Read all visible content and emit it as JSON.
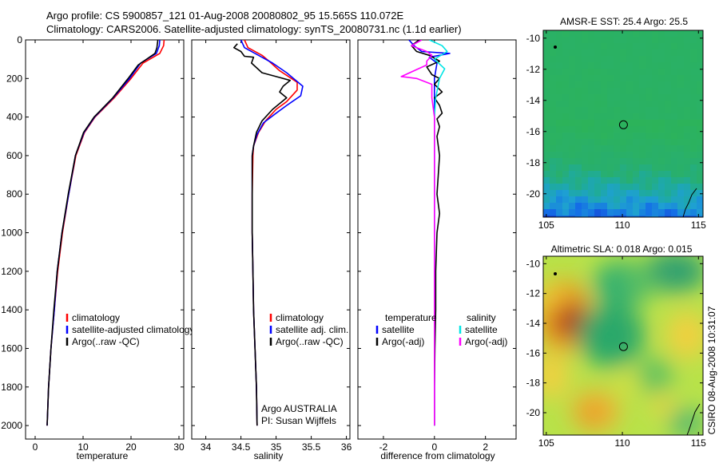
{
  "header": {
    "line1": "Argo profile: CS 5900857_121 01-Aug-2008 20080802_95 15.565S 110.072E",
    "line2": "Climatology: CARS2006. Satellite-adjusted climatology: synTS_20080731.nc (1.1d earlier)"
  },
  "side_stamp": "CSIRO 08-Aug-2008 10:31:07",
  "colors": {
    "climatology": "#ff0000",
    "satellite": "#0000ff",
    "argo": "#000000",
    "salinity_satellite": "#00e5e5",
    "salinity_argo": "#ff00ff"
  },
  "chart_data": [
    {
      "type": "line",
      "panel": "temperature",
      "xlabel": "temperature",
      "ylabel": "",
      "xlim": [
        -2,
        31
      ],
      "ylim": [
        2070,
        0
      ],
      "y_inverted": true,
      "xticks": [
        0,
        10,
        20,
        30
      ],
      "yticks": [
        0,
        200,
        400,
        600,
        800,
        1000,
        1200,
        1400,
        1600,
        1800,
        2000
      ],
      "legend": [
        "climatology",
        "satellite-adjusted climatology",
        "Argo(..raw -QC)"
      ],
      "series": [
        {
          "name": "climatology",
          "color": "#ff0000",
          "points": [
            [
              26.9,
              0
            ],
            [
              26.8,
              30
            ],
            [
              26.0,
              70
            ],
            [
              22.5,
              120
            ],
            [
              20.0,
              200
            ],
            [
              16.5,
              300
            ],
            [
              12.5,
              400
            ],
            [
              10.3,
              480
            ],
            [
              8.5,
              600
            ],
            [
              7.0,
              800
            ],
            [
              5.7,
              1000
            ],
            [
              4.7,
              1200
            ],
            [
              4.0,
              1400
            ],
            [
              3.3,
              1600
            ],
            [
              2.8,
              1800
            ],
            [
              2.5,
              2000
            ]
          ]
        },
        {
          "name": "satellite-adjusted climatology",
          "color": "#0000ff",
          "points": [
            [
              26.0,
              0
            ],
            [
              25.9,
              30
            ],
            [
              25.3,
              70
            ],
            [
              22.0,
              120
            ],
            [
              19.7,
              200
            ],
            [
              16.3,
              300
            ],
            [
              12.4,
              400
            ],
            [
              10.2,
              480
            ],
            [
              8.4,
              600
            ],
            [
              7.0,
              800
            ],
            [
              5.6,
              1000
            ],
            [
              4.6,
              1200
            ],
            [
              4.0,
              1400
            ],
            [
              3.3,
              1600
            ],
            [
              2.8,
              1800
            ],
            [
              2.5,
              2000
            ]
          ]
        },
        {
          "name": "Argo(..raw -QC)",
          "color": "#000000",
          "points": [
            [
              25.6,
              0
            ],
            [
              25.4,
              40
            ],
            [
              25.0,
              70
            ],
            [
              21.5,
              130
            ],
            [
              19.4,
              200
            ],
            [
              16.2,
              300
            ],
            [
              12.3,
              400
            ],
            [
              10.1,
              480
            ],
            [
              8.4,
              600
            ],
            [
              6.9,
              800
            ],
            [
              5.6,
              1000
            ],
            [
              4.6,
              1200
            ],
            [
              3.9,
              1400
            ],
            [
              3.3,
              1600
            ],
            [
              2.8,
              1800
            ],
            [
              2.5,
              2000
            ]
          ]
        }
      ]
    },
    {
      "type": "line",
      "panel": "salinity",
      "xlabel": "salinity",
      "ylabel": "",
      "xlim": [
        33.8,
        36.05
      ],
      "ylim": [
        2070,
        0
      ],
      "y_inverted": true,
      "xticks": [
        34,
        34.5,
        35,
        35.5,
        36
      ],
      "legend": [
        "climatology",
        "satellite adj. clim.",
        "Argo(..raw -QC)"
      ],
      "annotations": [
        "Argo AUSTRALIA",
        "PI: Susan Wijffels"
      ],
      "series": [
        {
          "name": "climatology",
          "color": "#ff0000",
          "points": [
            [
              34.55,
              0
            ],
            [
              34.6,
              40
            ],
            [
              34.8,
              80
            ],
            [
              34.9,
              110
            ],
            [
              35.05,
              160
            ],
            [
              35.3,
              220
            ],
            [
              35.3,
              260
            ],
            [
              35.15,
              320
            ],
            [
              35.0,
              360
            ],
            [
              34.85,
              420
            ],
            [
              34.75,
              480
            ],
            [
              34.68,
              550
            ],
            [
              34.67,
              600
            ],
            [
              34.66,
              800
            ],
            [
              34.66,
              1000
            ],
            [
              34.67,
              1200
            ],
            [
              34.68,
              1400
            ],
            [
              34.7,
              1600
            ],
            [
              34.72,
              1800
            ],
            [
              34.73,
              2000
            ]
          ]
        },
        {
          "name": "satellite adj. clim.",
          "color": "#0000ff",
          "points": [
            [
              34.5,
              0
            ],
            [
              34.55,
              40
            ],
            [
              34.75,
              80
            ],
            [
              34.95,
              120
            ],
            [
              35.15,
              170
            ],
            [
              35.38,
              240
            ],
            [
              35.35,
              290
            ],
            [
              35.15,
              340
            ],
            [
              35.0,
              380
            ],
            [
              34.82,
              430
            ],
            [
              34.73,
              490
            ],
            [
              34.68,
              550
            ],
            [
              34.66,
              600
            ],
            [
              34.66,
              800
            ],
            [
              34.66,
              1000
            ],
            [
              34.67,
              1200
            ],
            [
              34.68,
              1400
            ],
            [
              34.7,
              1600
            ],
            [
              34.72,
              1800
            ],
            [
              34.73,
              2000
            ]
          ]
        },
        {
          "name": "Argo(..raw -QC)",
          "color": "#000000",
          "points": [
            [
              34.45,
              20
            ],
            [
              34.4,
              40
            ],
            [
              34.5,
              60
            ],
            [
              34.55,
              85
            ],
            [
              34.68,
              90
            ],
            [
              34.65,
              120
            ],
            [
              34.8,
              170
            ],
            [
              35.0,
              190
            ],
            [
              35.2,
              210
            ],
            [
              35.1,
              240
            ],
            [
              35.05,
              270
            ],
            [
              35.15,
              300
            ],
            [
              34.95,
              360
            ],
            [
              34.8,
              420
            ],
            [
              34.72,
              480
            ],
            [
              34.68,
              550
            ],
            [
              34.66,
              600
            ],
            [
              34.66,
              800
            ],
            [
              34.66,
              1000
            ],
            [
              34.67,
              1200
            ],
            [
              34.68,
              1400
            ],
            [
              34.7,
              1600
            ],
            [
              34.72,
              1800
            ],
            [
              34.73,
              2000
            ]
          ]
        }
      ]
    },
    {
      "type": "line",
      "panel": "difference",
      "xlabel": "difference from climatology",
      "ylabel": "",
      "xlim": [
        -3,
        3.2
      ],
      "ylim": [
        2070,
        0
      ],
      "y_inverted": true,
      "xticks": [
        -2,
        0,
        2
      ],
      "legend_groups": [
        {
          "title": "temperature",
          "items": [
            "satellite",
            "Argo(-adj)"
          ]
        },
        {
          "title": "salinity",
          "items": [
            "satellite",
            "Argo(-adj)"
          ]
        }
      ],
      "series": [
        {
          "name": "temperature satellite",
          "color": "#0000ff",
          "points": [
            [
              -1.0,
              0
            ],
            [
              -0.8,
              30
            ],
            [
              -0.5,
              60
            ],
            [
              0.6,
              70
            ],
            [
              -0.2,
              90
            ],
            [
              0.1,
              120
            ],
            [
              0.0,
              200
            ],
            [
              0.0,
              300
            ],
            [
              0.0,
              500
            ],
            [
              0.0,
              1000
            ],
            [
              0.0,
              1500
            ],
            [
              0.0,
              2000
            ]
          ]
        },
        {
          "name": "temperature Argo(-adj)",
          "color": "#000000",
          "points": [
            [
              -0.6,
              0
            ],
            [
              -0.9,
              30
            ],
            [
              -0.7,
              60
            ],
            [
              -0.2,
              80
            ],
            [
              0.2,
              110
            ],
            [
              -0.3,
              140
            ],
            [
              -0.1,
              180
            ],
            [
              0.2,
              200
            ],
            [
              0.0,
              230
            ],
            [
              0.3,
              270
            ],
            [
              0.0,
              300
            ],
            [
              0.2,
              340
            ],
            [
              0.3,
              380
            ],
            [
              0.1,
              410
            ],
            [
              0.2,
              450
            ],
            [
              0.1,
              500
            ],
            [
              0.2,
              600
            ],
            [
              0.15,
              700
            ],
            [
              0.1,
              800
            ],
            [
              0.2,
              900
            ],
            [
              0.1,
              1000
            ],
            [
              0.05,
              1200
            ],
            [
              0.05,
              1400
            ],
            [
              0.02,
              1600
            ],
            [
              0.0,
              1800
            ],
            [
              0.0,
              2000
            ]
          ]
        },
        {
          "name": "salinity satellite",
          "color": "#00e5e5",
          "points": [
            [
              -0.2,
              0
            ],
            [
              0.3,
              30
            ],
            [
              0.5,
              60
            ],
            [
              0.0,
              100
            ],
            [
              0.4,
              150
            ],
            [
              0.2,
              200
            ],
            [
              0.05,
              300
            ],
            [
              0.0,
              400
            ],
            [
              0.0,
              600
            ],
            [
              0.0,
              1000
            ],
            [
              0.0,
              1500
            ],
            [
              0.0,
              2000
            ]
          ]
        },
        {
          "name": "salinity Argo(-adj)",
          "color": "#ff00ff",
          "points": [
            [
              -0.5,
              0
            ],
            [
              -0.9,
              30
            ],
            [
              -0.3,
              60
            ],
            [
              -0.1,
              80
            ],
            [
              -0.3,
              110
            ],
            [
              -0.3,
              130
            ],
            [
              -1.3,
              190
            ],
            [
              -0.7,
              200
            ],
            [
              -0.1,
              230
            ],
            [
              -0.1,
              300
            ],
            [
              -0.05,
              350
            ],
            [
              0.0,
              400
            ],
            [
              0.0,
              600
            ],
            [
              0.0,
              1000
            ],
            [
              0.0,
              1500
            ],
            [
              0.0,
              2000
            ]
          ]
        }
      ]
    },
    {
      "type": "heatmap",
      "panel": "sst",
      "title": "AMSR-E SST: 25.4 Argo: 25.5",
      "xlim": [
        104.8,
        115.3
      ],
      "ylim": [
        -21.5,
        -9.5
      ],
      "xticks": [
        105,
        110,
        115
      ],
      "yticks": [
        -10,
        -12,
        -14,
        -16,
        -18,
        -20
      ],
      "marker": {
        "lon": 110.072,
        "lat": -15.565
      }
    },
    {
      "type": "heatmap",
      "panel": "sla",
      "title": "Altimetric SLA: 0.018 Argo: 0.015",
      "xlim": [
        104.8,
        115.3
      ],
      "ylim": [
        -21.5,
        -9.5
      ],
      "xticks": [
        105,
        110,
        115
      ],
      "yticks": [
        -10,
        -12,
        -14,
        -16,
        -18,
        -20
      ],
      "marker": {
        "lon": 110.072,
        "lat": -15.565
      }
    }
  ]
}
